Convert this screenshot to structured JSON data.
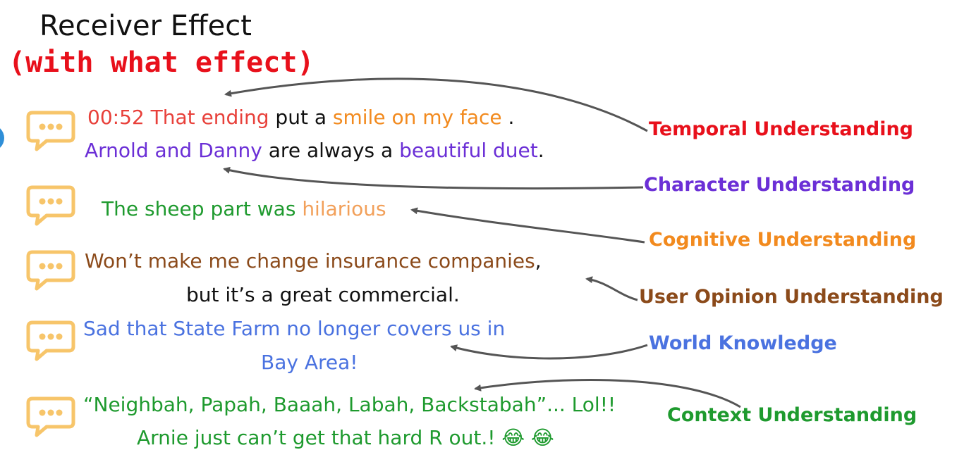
{
  "title": "Receiver Effect",
  "subtitle": "(with what effect)",
  "comments": [
    {
      "lines": [
        [
          {
            "t": "00:52 That ending",
            "c": "#e8403a"
          },
          {
            "t": " put a ",
            "c": "#111111"
          },
          {
            "t": "smile on my face",
            "c": "#f28a1e"
          },
          {
            "t": " .",
            "c": "#111111"
          }
        ],
        [
          {
            "t": "Arnold and Danny",
            "c": "#6b2fd6"
          },
          {
            "t": " are always a ",
            "c": "#111111"
          },
          {
            "t": "beautiful duet",
            "c": "#6b2fd6"
          },
          {
            "t": ".",
            "c": "#111111"
          }
        ]
      ]
    },
    {
      "lines": [
        [
          {
            "t": "The sheep part was ",
            "c": "#1e9a2e"
          },
          {
            "t": "hilarious",
            "c": "#f2a05a"
          }
        ]
      ]
    },
    {
      "lines": [
        [
          {
            "t": "Won’t make me change insurance companies",
            "c": "#8b4a1a"
          },
          {
            "t": ",",
            "c": "#111111"
          }
        ],
        [
          {
            "t": "but it’s a great commercial.",
            "c": "#111111"
          }
        ]
      ]
    },
    {
      "lines": [
        [
          {
            "t": "Sad that State Farm no longer covers us in",
            "c": "#4a72e0"
          }
        ],
        [
          {
            "t": "Bay Area!",
            "c": "#4a72e0"
          }
        ]
      ]
    },
    {
      "lines": [
        [
          {
            "t": "“Neighbah, Papah, Baaah, Labah, Backstabah”... Lol!!",
            "c": "#1e9a2e"
          }
        ],
        [
          {
            "t": "Arnie just can’t get that hard R out.! 😂 😂",
            "c": "#1e9a2e"
          }
        ]
      ]
    }
  ],
  "labels": [
    {
      "text": "Temporal Understanding",
      "color": "#e8101b"
    },
    {
      "text": "Character Understanding",
      "color": "#6b2fd6"
    },
    {
      "text": "Cognitive Understanding",
      "color": "#f28a1e"
    },
    {
      "text": "User Opinion Understanding",
      "color": "#8b4a1a"
    },
    {
      "text": "World Knowledge",
      "color": "#4a72e0"
    },
    {
      "text": "Context Understanding",
      "color": "#1e9a2e"
    }
  ],
  "colors": {
    "bubble": "#f7c56a",
    "arrow": "#555555"
  }
}
